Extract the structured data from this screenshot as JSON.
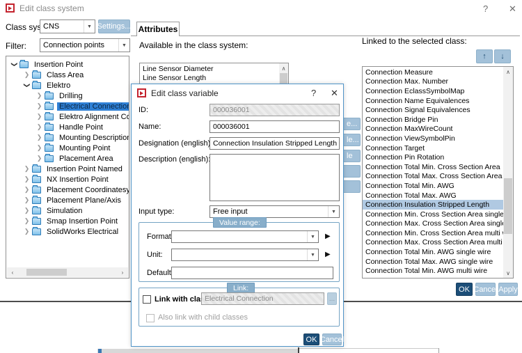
{
  "colors": {
    "accent_dark": "#1c4e78",
    "button_light": "#a3c1d9",
    "tree_selection": "#2f80d5",
    "list_selection": "#b0c9e2",
    "modal_border": "#4f94c8",
    "legend_bg": "#88aeca"
  },
  "window": {
    "title": "Edit class system",
    "help_icon": "?",
    "close_icon": "✕"
  },
  "header": {
    "class_system_label": "Class system:",
    "class_system_value": "CNS",
    "settings_button": "Settings...",
    "filter_label": "Filter:",
    "filter_value": "Connection points"
  },
  "tab": {
    "label": "Attributes"
  },
  "tree": {
    "items": [
      {
        "label": "Insertion Point",
        "level": 0,
        "state": "expanded",
        "selected": false
      },
      {
        "label": "Class Area",
        "level": 1,
        "state": "collapsed",
        "selected": false
      },
      {
        "label": "Elektro",
        "level": 1,
        "state": "expanded",
        "selected": false
      },
      {
        "label": "Drilling",
        "level": 2,
        "state": "collapsed",
        "selected": false
      },
      {
        "label": "Electrical Connection",
        "level": 2,
        "state": "collapsed",
        "selected": true
      },
      {
        "label": "Elektro Alignment Coords",
        "level": 2,
        "state": "collapsed",
        "selected": false
      },
      {
        "label": "Handle Point",
        "level": 2,
        "state": "collapsed",
        "selected": false
      },
      {
        "label": "Mounting Description",
        "level": 2,
        "state": "collapsed",
        "selected": false
      },
      {
        "label": "Mounting Point",
        "level": 2,
        "state": "collapsed",
        "selected": false
      },
      {
        "label": "Placement Area",
        "level": 2,
        "state": "collapsed",
        "selected": false
      },
      {
        "label": "Insertion Point Named",
        "level": 1,
        "state": "collapsed",
        "selected": false
      },
      {
        "label": "NX Insertion Point",
        "level": 1,
        "state": "collapsed",
        "selected": false
      },
      {
        "label": "Placement Coordinatesystem",
        "level": 1,
        "state": "collapsed",
        "selected": false
      },
      {
        "label": "Placement Plane/Axis",
        "level": 1,
        "state": "collapsed",
        "selected": false
      },
      {
        "label": "Simulation",
        "level": 1,
        "state": "collapsed",
        "selected": false
      },
      {
        "label": "Smap Insertion Point",
        "level": 1,
        "state": "collapsed",
        "selected": false
      },
      {
        "label": "SolidWorks Electrical",
        "level": 1,
        "state": "collapsed",
        "selected": false
      }
    ]
  },
  "available": {
    "label": "Available in the class system:",
    "items": [
      "Line Sensor Diameter",
      "Line Sensor Length"
    ]
  },
  "middle_buttons": [
    "e...",
    "le...",
    "le",
    "",
    ""
  ],
  "linked": {
    "label": "Linked to the selected class:",
    "move_up_icon": "↑",
    "move_down_icon": "↓",
    "selected_index": 14,
    "items": [
      "Connection Measure",
      "Connection Max. Number",
      "Connection EclassSymbolMap",
      "Connection Name Equivalences",
      "Connection Signal Equivalences",
      "Connection Bridge Pin",
      "Connection MaxWireCount",
      "Connection ViewSymbolPin",
      "Connection Target",
      "Connection Pin Rotation",
      "Connection Total Min. Cross Section Area",
      "Connection Total Max. Cross Section Area",
      "Connection Total Min. AWG",
      "Connection Total Max. AWG",
      "Connection Insulation Stripped Length",
      "Connection Min. Cross Section Area single wire",
      "Connection Max. Cross Section Area single wire",
      "Connection Min. Cross Section Area multi wire",
      "Connection Max. Cross Section Area multi wire",
      "Connection Total Min. AWG single wire",
      "Connection Total Max. AWG single wire",
      "Connection Total Min. AWG multi wire"
    ]
  },
  "footer": {
    "ok": "OK",
    "cancel": "Cancel",
    "apply": "Apply"
  },
  "modal": {
    "title": "Edit class variable",
    "help_icon": "?",
    "close_icon": "✕",
    "id_label": "ID:",
    "id_value": "000036001",
    "name_label": "Name:",
    "name_value": "000036001",
    "designation_label": "Designation (english):",
    "designation_value": "Connection Insulation Stripped Length",
    "description_label": "Description (english):",
    "description_value": "",
    "input_type_label": "Input type:",
    "input_type_value": "Free input",
    "value_range_legend": "Value range:",
    "format_label": "Format:",
    "format_value": "",
    "unit_label": "Unit:",
    "unit_value": "",
    "default_label": "Default:",
    "default_value": "",
    "link_legend": "Link:",
    "link_with_class_label": "Link with class:",
    "link_class_value": "Electrical Connection",
    "browse_button": "...",
    "also_link_label": "Also link with child classes",
    "ok": "OK",
    "cancel": "Cancel"
  }
}
